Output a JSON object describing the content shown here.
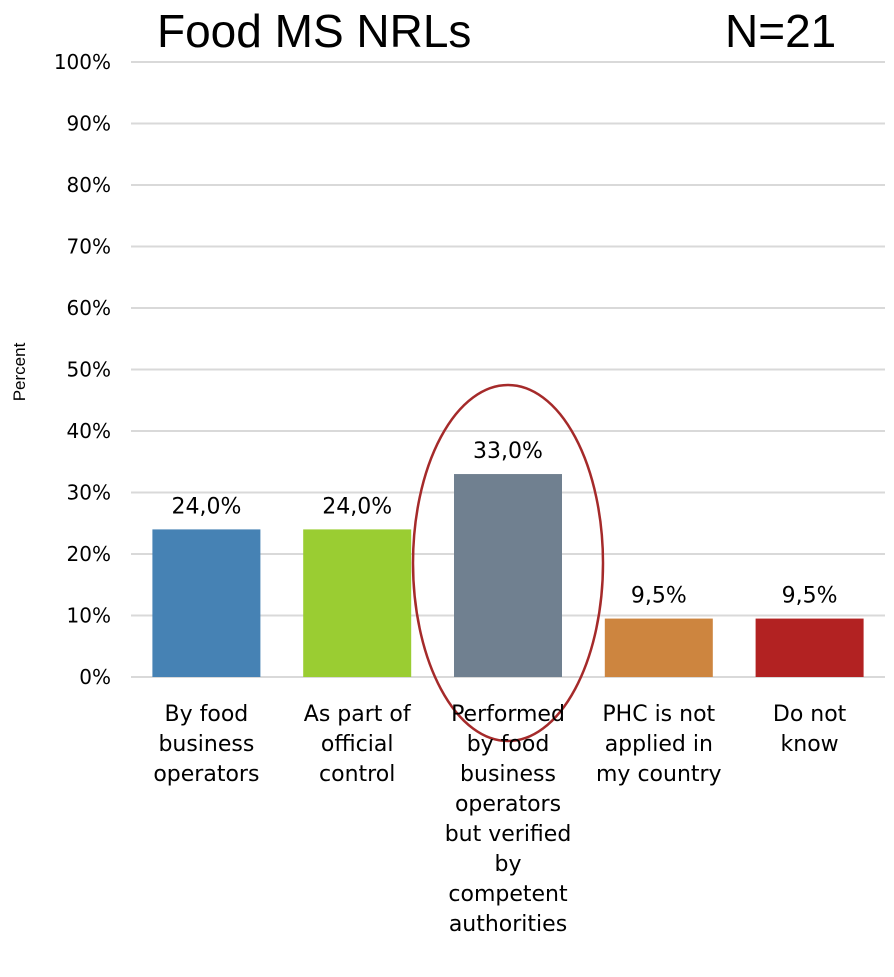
{
  "title": "Food MS NRLs",
  "n_label": "N=21",
  "chart_data": {
    "type": "bar",
    "title": "Food MS NRLs",
    "ylabel": "Percent",
    "xlabel": "",
    "ylim": [
      0,
      100
    ],
    "yticks": [
      "0%",
      "10%",
      "20%",
      "30%",
      "40%",
      "50%",
      "60%",
      "70%",
      "80%",
      "90%",
      "100%"
    ],
    "grid": true,
    "categories": [
      "By food\nbusiness\noperators",
      "As part of\nofficial\ncontrol",
      "Performed\nby food\nbusiness\noperators\nbut verified\nby\ncompetent\nauthorities",
      "PHC is not\napplied in\nmy country",
      "Do not\nknow"
    ],
    "values": [
      24.0,
      24.0,
      33.0,
      9.5,
      9.5
    ],
    "data_labels": [
      "24,0%",
      "24,0%",
      "33,0%",
      "9,5%",
      "9,5%"
    ],
    "colors": [
      "#4682B4",
      "#9ACD32",
      "#708090",
      "#CD853F",
      "#B22222"
    ],
    "highlight": {
      "category_index": 2,
      "shape": "ellipse",
      "color": "#A52A2A"
    }
  }
}
